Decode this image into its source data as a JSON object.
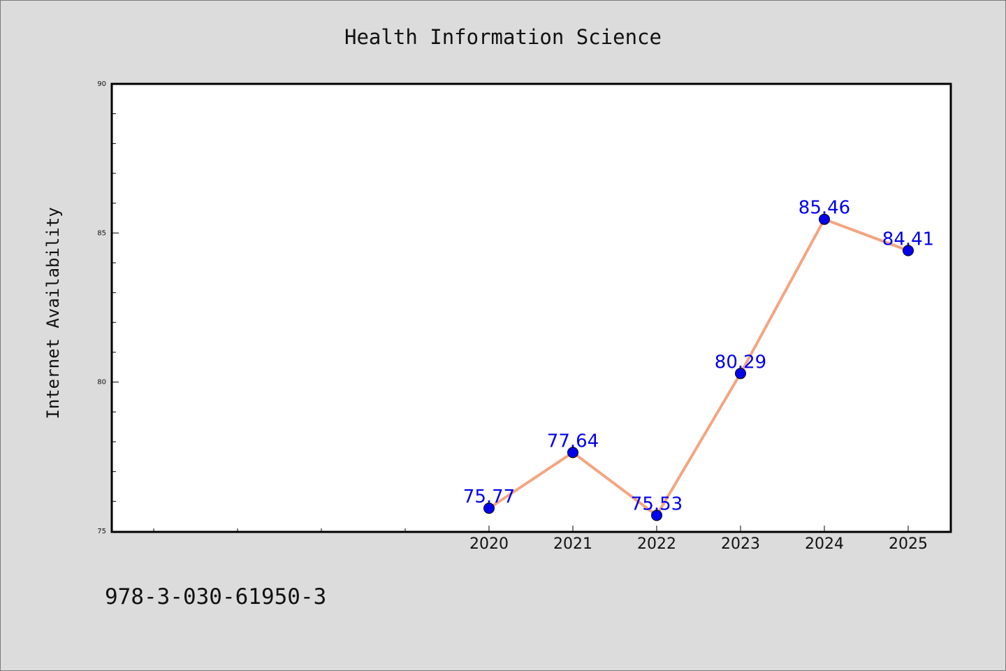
{
  "footer": {
    "isbn": "978-3-030-61950-3"
  },
  "colors": {
    "background": "#dcdcdc",
    "plot_background": "#ffffff",
    "line": "#f4a582",
    "marker": "#0000ee",
    "label": "#0000ee"
  },
  "chart_data": {
    "type": "line",
    "title": "Health Information Science",
    "xlabel": "",
    "ylabel": "Internet Availability",
    "x": [
      2020,
      2021,
      2022,
      2023,
      2024,
      2025
    ],
    "values": [
      75.77,
      77.64,
      75.53,
      80.29,
      85.46,
      84.41
    ],
    "data_labels": [
      "75.77",
      "77.64",
      "75.53",
      "80.29",
      "85.46",
      "84.41"
    ],
    "xlim": [
      2015.5,
      2025.5
    ],
    "ylim": [
      75,
      90
    ],
    "yticks": [
      75,
      80,
      85,
      90
    ],
    "grid": false,
    "legend": "none"
  }
}
